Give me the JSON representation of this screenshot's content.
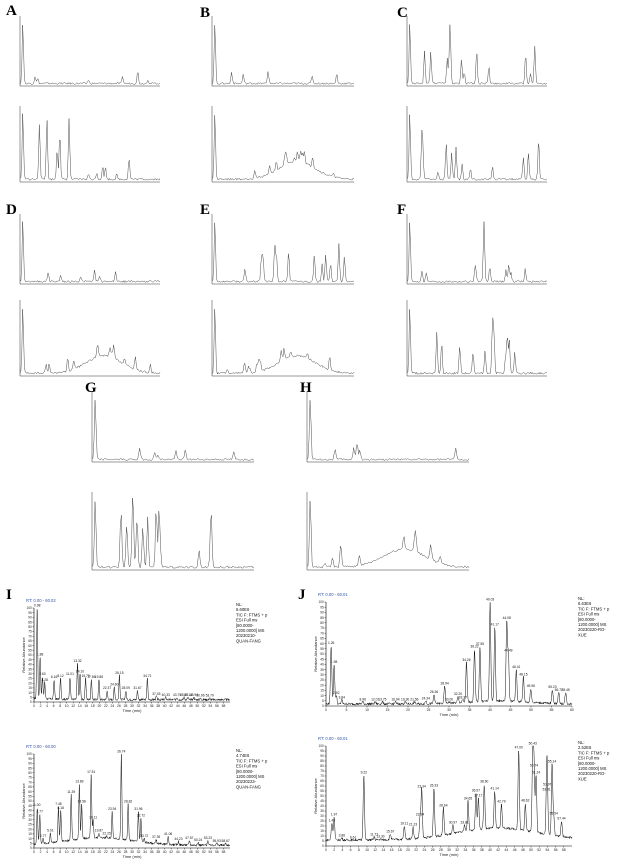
{
  "panels": [
    {
      "label": "A"
    },
    {
      "label": "B"
    },
    {
      "label": "C"
    },
    {
      "label": "D"
    },
    {
      "label": "E"
    },
    {
      "label": "F"
    },
    {
      "label": "G"
    },
    {
      "label": "H"
    },
    {
      "label": "I"
    },
    {
      "label": "J"
    }
  ],
  "chart_data": [
    {
      "id": "I-top",
      "type": "line",
      "rt_label": "RT: 0.00 - 60.02",
      "meta": [
        "NL:",
        "6.60E6",
        "TIC F: FTMS + p",
        "ESI Full ms",
        "[80.0000-",
        "1200.0000] MS",
        "20230210-",
        "QUAN-FANG"
      ],
      "xlabel": "Time (min)",
      "ylabel": "Relative Abundance",
      "xlim": [
        0,
        60
      ],
      "ylim": [
        0,
        100
      ],
      "grid": false,
      "xticks": [
        0,
        2,
        4,
        6,
        8,
        10,
        12,
        14,
        16,
        18,
        20,
        22,
        24,
        26,
        28,
        30,
        32,
        34,
        36,
        38,
        40,
        42,
        44,
        46,
        48,
        50,
        52,
        54,
        56,
        58
      ],
      "yticks": [
        0,
        5,
        10,
        15,
        20,
        25,
        30,
        35,
        40,
        45,
        50,
        55,
        60,
        65,
        70,
        75,
        80,
        85,
        90,
        95,
        100
      ],
      "peaks": [
        {
          "x": 0.98,
          "y": 100,
          "label": "0.98"
        },
        {
          "x": 1.88,
          "y": 48,
          "label": "1.88"
        },
        {
          "x": 2.6,
          "y": 27,
          "label": "2.60"
        },
        {
          "x": 3.28,
          "y": 21,
          "label": "3.28"
        },
        {
          "x": 6.16,
          "y": 24,
          "label": "6.16"
        },
        {
          "x": 8.12,
          "y": 25,
          "label": "8.12"
        },
        {
          "x": 11.01,
          "y": 27,
          "label": "11.01"
        },
        {
          "x": 13.32,
          "y": 41,
          "label": "13.32"
        },
        {
          "x": 14.1,
          "y": 30,
          "label": "14.10"
        },
        {
          "x": 15.79,
          "y": 25,
          "label": "15.79"
        },
        {
          "x": 17.56,
          "y": 24,
          "label": "17.56"
        },
        {
          "x": 19.88,
          "y": 24,
          "label": "19.88"
        },
        {
          "x": 22.37,
          "y": 12,
          "label": "22.37"
        },
        {
          "x": 24.6,
          "y": 16,
          "label": "24.60"
        },
        {
          "x": 26.15,
          "y": 28,
          "label": "26.15"
        },
        {
          "x": 28.09,
          "y": 12,
          "label": "28.09"
        },
        {
          "x": 31.67,
          "y": 12,
          "label": "31.67"
        },
        {
          "x": 34.71,
          "y": 25,
          "label": "34.71"
        },
        {
          "x": 37.45,
          "y": 6,
          "label": "37.45"
        },
        {
          "x": 40.33,
          "y": 5,
          "label": "40.33"
        },
        {
          "x": 43.79,
          "y": 5,
          "label": "43.79"
        },
        {
          "x": 45.94,
          "y": 5,
          "label": "45.94"
        },
        {
          "x": 47.13,
          "y": 5,
          "label": "47.13"
        },
        {
          "x": 48.94,
          "y": 5,
          "label": "48.94"
        },
        {
          "x": 50.96,
          "y": 4,
          "label": "50.96"
        },
        {
          "x": 53.79,
          "y": 4,
          "label": "53.79"
        }
      ]
    },
    {
      "id": "I-bottom",
      "type": "line",
      "rt_label": "RT: 0.00 - 60.00",
      "meta": [
        "NL:",
        "4.74E6",
        "TIC F: FTMS + p",
        "ESI Full ms",
        "[80.0000-",
        "1200.0000] MS",
        "20230223-",
        "QUAN-FANG"
      ],
      "xlabel": "Time (min)",
      "ylabel": "Relative Abundance",
      "xlim": [
        0,
        60
      ],
      "ylim": [
        0,
        100
      ],
      "grid": false,
      "xticks": [
        0,
        2,
        4,
        6,
        8,
        10,
        12,
        14,
        16,
        18,
        20,
        22,
        24,
        26,
        28,
        30,
        32,
        34,
        36,
        38,
        40,
        42,
        44,
        46,
        48,
        50,
        52,
        54,
        56,
        58
      ],
      "yticks": [
        0,
        5,
        10,
        15,
        20,
        25,
        30,
        35,
        40,
        45,
        50,
        55,
        60,
        65,
        70,
        75,
        80,
        85,
        90,
        95,
        100
      ],
      "peaks": [
        {
          "x": 1.0,
          "y": 43,
          "label": "1.00"
        },
        {
          "x": 1.77,
          "y": 36,
          "label": "1.77"
        },
        {
          "x": 2.77,
          "y": 10,
          "label": "2.77"
        },
        {
          "x": 5.01,
          "y": 16,
          "label": "5.01"
        },
        {
          "x": 7.48,
          "y": 44,
          "label": "7.48"
        },
        {
          "x": 8.18,
          "y": 40,
          "label": "8.18"
        },
        {
          "x": 11.39,
          "y": 57,
          "label": "11.39"
        },
        {
          "x": 13.89,
          "y": 68,
          "label": "13.89"
        },
        {
          "x": 14.58,
          "y": 47,
          "label": "14.58"
        },
        {
          "x": 17.51,
          "y": 78,
          "label": "17.51"
        },
        {
          "x": 18.11,
          "y": 30,
          "label": "18.11"
        },
        {
          "x": 19.87,
          "y": 16,
          "label": "19.87"
        },
        {
          "x": 22.25,
          "y": 13,
          "label": "22.25"
        },
        {
          "x": 23.94,
          "y": 39,
          "label": "23.94"
        },
        {
          "x": 26.74,
          "y": 100,
          "label": "26.74"
        },
        {
          "x": 28.82,
          "y": 47,
          "label": "28.82"
        },
        {
          "x": 31.96,
          "y": 39,
          "label": "31.96"
        },
        {
          "x": 32.72,
          "y": 32,
          "label": "32.72"
        },
        {
          "x": 33.72,
          "y": 10,
          "label": "33.72"
        },
        {
          "x": 37.39,
          "y": 9,
          "label": "37.39"
        },
        {
          "x": 41.06,
          "y": 12,
          "label": "41.06"
        },
        {
          "x": 44.23,
          "y": 7,
          "label": "44.23"
        },
        {
          "x": 47.57,
          "y": 8,
          "label": "47.57"
        },
        {
          "x": 50.24,
          "y": 6,
          "label": "50.24"
        },
        {
          "x": 53.23,
          "y": 8,
          "label": "53.23"
        },
        {
          "x": 55.93,
          "y": 5,
          "label": "55.93"
        },
        {
          "x": 58.67,
          "y": 5,
          "label": "58.67"
        }
      ]
    },
    {
      "id": "J-top",
      "type": "line",
      "rt_label": "RT: 0.00 - 60.01",
      "meta": [
        "NL:",
        "6.63E6",
        "TIC F: FTMS + p",
        "ESI Full ms",
        "[80.0000-",
        "1200.0000] MS",
        "20230220-RO-",
        "XUE"
      ],
      "xlabel": "Time (min)",
      "ylabel": "Relative Abundance",
      "xlim": [
        0,
        60
      ],
      "ylim": [
        0,
        100
      ],
      "grid": false,
      "xticks": [
        0,
        5,
        10,
        15,
        20,
        25,
        30,
        35,
        40,
        45,
        50,
        55,
        60
      ],
      "yticks": [
        0,
        5,
        10,
        15,
        20,
        25,
        30,
        35,
        40,
        45,
        50,
        55,
        60,
        65,
        70,
        75,
        80,
        85,
        90,
        95,
        100
      ],
      "peaks": [
        {
          "x": 1.26,
          "y": 58,
          "label": "1.26"
        },
        {
          "x": 1.98,
          "y": 40,
          "label": "1.98"
        },
        {
          "x": 2.52,
          "y": 10,
          "label": "2.52"
        },
        {
          "x": 3.84,
          "y": 6,
          "label": "3.84"
        },
        {
          "x": 8.96,
          "y": 4,
          "label": "8.96"
        },
        {
          "x": 12.01,
          "y": 4,
          "label": "12.01"
        },
        {
          "x": 13.75,
          "y": 4,
          "label": "13.75"
        },
        {
          "x": 16.94,
          "y": 4,
          "label": "16.94"
        },
        {
          "x": 19.3,
          "y": 4,
          "label": "19.30"
        },
        {
          "x": 21.56,
          "y": 4,
          "label": "21.56"
        },
        {
          "x": 24.34,
          "y": 5,
          "label": "24.34"
        },
        {
          "x": 26.36,
          "y": 11,
          "label": "26.36"
        },
        {
          "x": 28.94,
          "y": 19,
          "label": "28.94"
        },
        {
          "x": 30.0,
          "y": 4,
          "label": "30.00"
        },
        {
          "x": 32.2,
          "y": 9,
          "label": "32.20"
        },
        {
          "x": 33.37,
          "y": 6,
          "label": "33.37"
        },
        {
          "x": 34.26,
          "y": 42,
          "label": "34.26"
        },
        {
          "x": 36.22,
          "y": 55,
          "label": "36.22"
        },
        {
          "x": 37.55,
          "y": 57,
          "label": "37.55"
        },
        {
          "x": 40.03,
          "y": 100,
          "label": "40.03"
        },
        {
          "x": 41.17,
          "y": 76,
          "label": "41.17"
        },
        {
          "x": 44.08,
          "y": 82,
          "label": "44.08"
        },
        {
          "x": 44.49,
          "y": 51,
          "label": "44.49"
        },
        {
          "x": 46.41,
          "y": 35,
          "label": "46.41"
        },
        {
          "x": 48.15,
          "y": 28,
          "label": "48.15"
        },
        {
          "x": 49.96,
          "y": 17,
          "label": "49.96"
        },
        {
          "x": 55.23,
          "y": 16,
          "label": "55.23"
        },
        {
          "x": 56.77,
          "y": 13,
          "label": "56.77"
        },
        {
          "x": 58.45,
          "y": 13,
          "label": "58.45"
        }
      ]
    },
    {
      "id": "J-bottom",
      "type": "line",
      "rt_label": "RT: 0.00 - 60.01",
      "meta": [
        "NL:",
        "2.52E6",
        "TIC F: FTMS + p",
        "ESI Full ms",
        "[80.0000-",
        "1200.0000] MS",
        "20230220-RO-",
        "XUE"
      ],
      "xlabel": "Time (min)",
      "ylabel": "Relative Abundance",
      "xlim": [
        0,
        60
      ],
      "ylim": [
        0,
        100
      ],
      "grid": false,
      "xticks": [
        0,
        2,
        4,
        6,
        8,
        10,
        12,
        14,
        16,
        18,
        20,
        22,
        24,
        26,
        28,
        30,
        32,
        34,
        36,
        38,
        40,
        42,
        44,
        46,
        48,
        50,
        52,
        54,
        56,
        58
      ],
      "yticks": [
        0,
        5,
        10,
        15,
        20,
        25,
        30,
        35,
        40,
        45,
        50,
        55,
        60,
        65,
        70,
        75,
        80,
        85,
        90,
        95,
        100
      ],
      "peaks": [
        {
          "x": 1.43,
          "y": 23,
          "label": "1.43"
        },
        {
          "x": 1.97,
          "y": 29,
          "label": "1.97"
        },
        {
          "x": 3.86,
          "y": 8,
          "label": "3.86"
        },
        {
          "x": 6.61,
          "y": 6,
          "label": "6.61"
        },
        {
          "x": 9.22,
          "y": 71,
          "label": "9.22"
        },
        {
          "x": 11.73,
          "y": 9,
          "label": "11.73"
        },
        {
          "x": 13.3,
          "y": 7,
          "label": "13.30"
        },
        {
          "x": 15.67,
          "y": 12,
          "label": "15.67"
        },
        {
          "x": 19.11,
          "y": 20,
          "label": "19.11"
        },
        {
          "x": 21.23,
          "y": 19,
          "label": "21.23"
        },
        {
          "x": 22.94,
          "y": 29,
          "label": "22.94"
        },
        {
          "x": 23.34,
          "y": 57,
          "label": "23.34"
        },
        {
          "x": 26.33,
          "y": 58,
          "label": "26.33"
        },
        {
          "x": 28.64,
          "y": 38,
          "label": "28.64"
        },
        {
          "x": 30.97,
          "y": 21,
          "label": "30.97"
        },
        {
          "x": 33.81,
          "y": 21,
          "label": "33.81"
        },
        {
          "x": 34.65,
          "y": 45,
          "label": "34.65"
        },
        {
          "x": 36.57,
          "y": 53,
          "label": "36.57"
        },
        {
          "x": 37.17,
          "y": 48,
          "label": "37.17"
        },
        {
          "x": 38.6,
          "y": 62,
          "label": "38.60"
        },
        {
          "x": 41.14,
          "y": 55,
          "label": "41.14"
        },
        {
          "x": 42.79,
          "y": 42,
          "label": "42.79"
        },
        {
          "x": 47.0,
          "y": 96,
          "label": "47.00"
        },
        {
          "x": 48.62,
          "y": 43,
          "label": "48.62"
        },
        {
          "x": 50.43,
          "y": 100,
          "label": "50.43"
        },
        {
          "x": 50.74,
          "y": 78,
          "label": "50.74"
        },
        {
          "x": 51.24,
          "y": 71,
          "label": "51.24"
        },
        {
          "x": 53.81,
          "y": 54,
          "label": "53.81"
        },
        {
          "x": 53.97,
          "y": 59,
          "label": "53.97"
        },
        {
          "x": 55.14,
          "y": 82,
          "label": "55.14"
        },
        {
          "x": 55.54,
          "y": 30,
          "label": "55.54"
        },
        {
          "x": 57.44,
          "y": 25,
          "label": "57.44"
        }
      ]
    }
  ]
}
